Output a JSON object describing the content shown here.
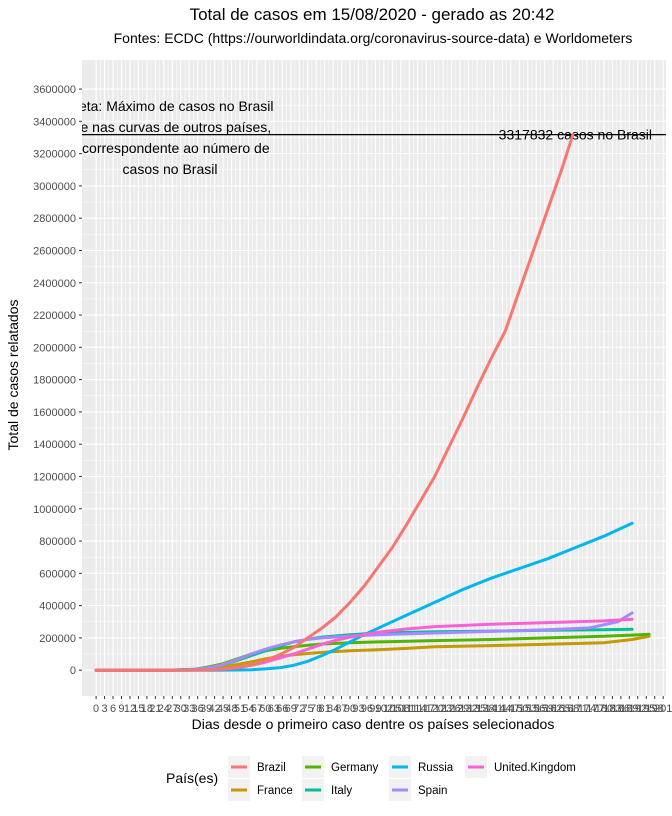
{
  "chart_data": {
    "type": "line",
    "title": "Total de casos em 15/08/2020 - gerado as 20:42",
    "subtitle": "Fontes: ECDC (https://ourworldindata.org/coronavirus-source-data) e Worldometers",
    "xlabel": "Dias desde o primeiro caso dentre os países selecionados",
    "ylabel": "Total de casos relatados",
    "xlim": [
      -5,
      202
    ],
    "ylim": [
      -160000,
      3780000
    ],
    "y_ticks": [
      0,
      200000,
      400000,
      600000,
      800000,
      1000000,
      1200000,
      1400000,
      1600000,
      1800000,
      2000000,
      2200000,
      2400000,
      2600000,
      2800000,
      3000000,
      3200000,
      3400000,
      3600000
    ],
    "y_tick_labels": [
      "0",
      "200000",
      "400000",
      "600000",
      "800000",
      "1000000",
      "1200000",
      "1400000",
      "1600000",
      "1800000",
      "2000000",
      "2200000",
      "2400000",
      "2600000",
      "2800000",
      "3000000",
      "3200000",
      "3400000",
      "3600000"
    ],
    "x_tick_labels_text": "0 3 6 9 12 15 18 21 24 27 30 33 36 39 42 45 48 51 54 57 60 63 66 69 72 75 78 81 84 87 90 93 96 99 102 105 108 111 114 117 120 123 126 129 132 135 138 141 144 147 150 153 156 159 162 165 168 171 174 177 180 183 186 189 192 195 198 201",
    "x_tick_step": 3,
    "x_tick_max": 201,
    "hline": {
      "y": 3317832,
      "label": "3317832 casos no Brasil"
    },
    "annotation_lines": [
      "preta: Máximo de casos no Brasil",
      "rve nas curvas de outros países,",
      "a correspondente ao número de",
      "casos no Brasil"
    ],
    "legend": {
      "title": "País(es)",
      "position": "bottom"
    },
    "grid": true,
    "series": [
      {
        "name": "Brazil",
        "color": "#F8766D",
        "x": [
          0,
          25,
          35,
          40,
          45,
          50,
          55,
          60,
          65,
          70,
          75,
          80,
          85,
          90,
          95,
          100,
          105,
          110,
          115,
          120,
          125,
          130,
          135,
          140,
          145,
          150,
          155,
          160,
          165,
          169
        ],
        "y": [
          0,
          0,
          500,
          2000,
          8000,
          18000,
          33000,
          60000,
          95000,
          140000,
          200000,
          260000,
          330000,
          420000,
          520000,
          640000,
          760000,
          900000,
          1050000,
          1200000,
          1380000,
          1560000,
          1750000,
          1930000,
          2100000,
          2350000,
          2600000,
          2850000,
          3100000,
          3317832
        ]
      },
      {
        "name": "France",
        "color": "#C49A00",
        "x": [
          0,
          20,
          30,
          35,
          40,
          45,
          50,
          55,
          60,
          65,
          70,
          80,
          90,
          100,
          110,
          120,
          140,
          160,
          180,
          190,
          196
        ],
        "y": [
          0,
          0,
          1000,
          3000,
          9000,
          20000,
          35000,
          52000,
          70000,
          85000,
          95000,
          110000,
          120000,
          127000,
          135000,
          145000,
          152000,
          160000,
          170000,
          190000,
          210000
        ]
      },
      {
        "name": "Germany",
        "color": "#53B400",
        "x": [
          0,
          25,
          30,
          35,
          40,
          45,
          50,
          55,
          60,
          65,
          70,
          75,
          80,
          90,
          100,
          120,
          140,
          160,
          180,
          190,
          196
        ],
        "y": [
          0,
          0,
          2000,
          6000,
          20000,
          40000,
          70000,
          100000,
          120000,
          135000,
          145000,
          155000,
          162000,
          170000,
          175000,
          183000,
          190000,
          200000,
          210000,
          217000,
          223000
        ]
      },
      {
        "name": "Italy",
        "color": "#00C094",
        "x": [
          0,
          25,
          30,
          35,
          40,
          45,
          50,
          55,
          60,
          65,
          70,
          75,
          80,
          90,
          100,
          120,
          140,
          160,
          180,
          190
        ],
        "y": [
          0,
          0,
          2000,
          6000,
          15000,
          35000,
          60000,
          90000,
          120000,
          150000,
          175000,
          192000,
          205000,
          220000,
          230000,
          238000,
          242000,
          247000,
          250000,
          253000
        ]
      },
      {
        "name": "Russia",
        "color": "#00B6EB",
        "x": [
          0,
          40,
          50,
          55,
          60,
          65,
          70,
          75,
          80,
          85,
          90,
          95,
          100,
          105,
          110,
          120,
          130,
          140,
          150,
          160,
          170,
          180,
          190
        ],
        "y": [
          0,
          0,
          1000,
          3000,
          8000,
          15000,
          30000,
          55000,
          90000,
          130000,
          175000,
          220000,
          260000,
          300000,
          340000,
          420000,
          500000,
          570000,
          630000,
          690000,
          760000,
          830000,
          910000
        ]
      },
      {
        "name": "Spain",
        "color": "#A58AFF",
        "x": [
          0,
          25,
          30,
          35,
          40,
          45,
          50,
          55,
          60,
          65,
          70,
          75,
          80,
          90,
          100,
          120,
          140,
          160,
          175,
          185,
          190
        ],
        "y": [
          0,
          0,
          1000,
          5000,
          15000,
          35000,
          65000,
          100000,
          130000,
          155000,
          175000,
          190000,
          200000,
          212000,
          220000,
          230000,
          240000,
          250000,
          262000,
          300000,
          355000
        ]
      },
      {
        "name": "United.Kingdom",
        "color": "#FB61D7",
        "x": [
          0,
          30,
          40,
          45,
          50,
          55,
          60,
          65,
          70,
          75,
          80,
          85,
          90,
          95,
          100,
          110,
          120,
          140,
          160,
          180,
          190
        ],
        "y": [
          0,
          0,
          2000,
          6000,
          15000,
          30000,
          50000,
          75000,
          100000,
          130000,
          160000,
          185000,
          205000,
          220000,
          235000,
          255000,
          270000,
          285000,
          295000,
          305000,
          315000
        ]
      }
    ]
  }
}
